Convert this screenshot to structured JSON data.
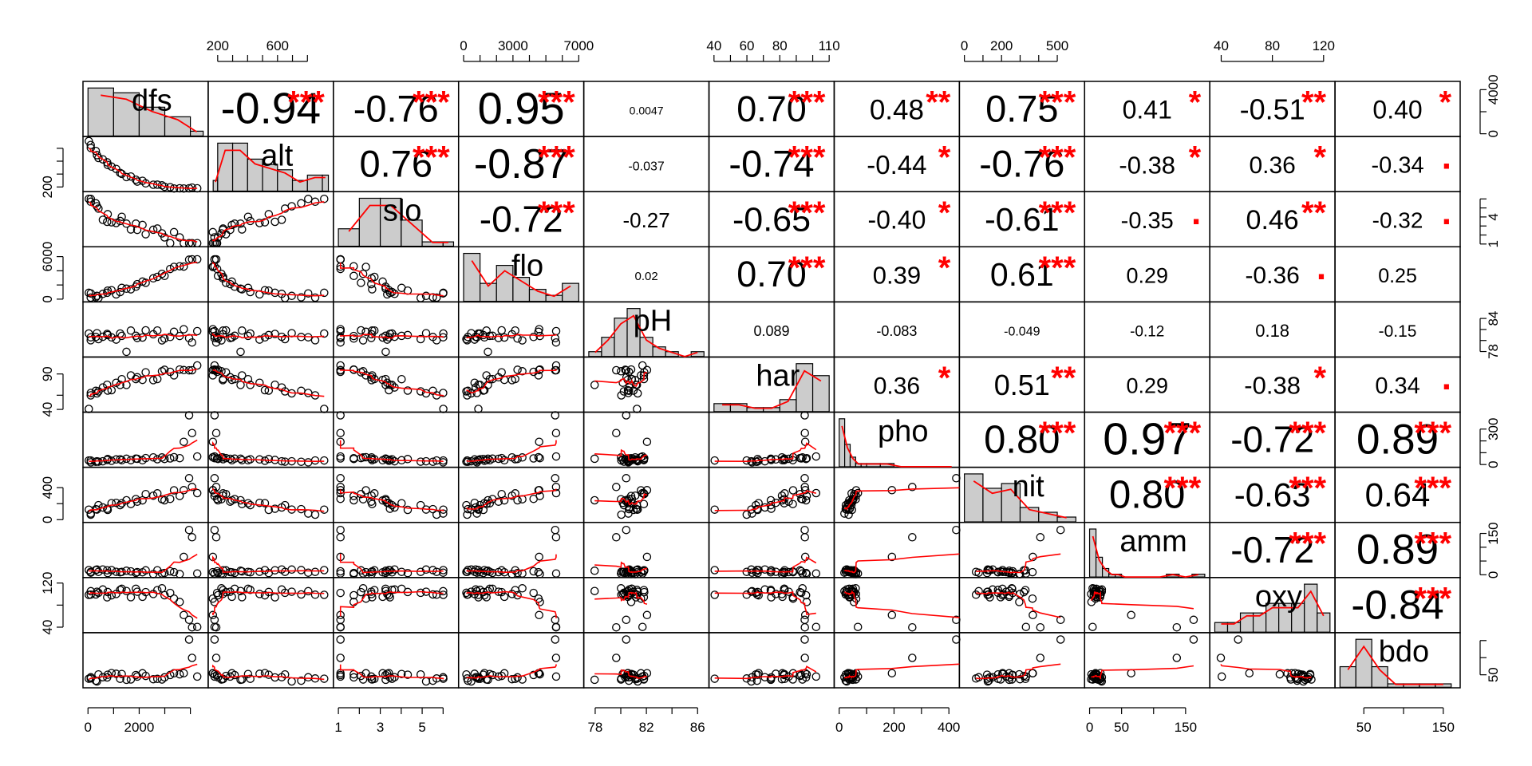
{
  "chart_data": {
    "type": "scatter-matrix",
    "variables": [
      "dfs",
      "alt",
      "slo",
      "flo",
      "pH",
      "har",
      "pho",
      "nit",
      "amm",
      "oxy",
      "bdo"
    ],
    "ranges": {
      "dfs": [
        0,
        4500
      ],
      "alt": [
        170,
        940
      ],
      "slo": [
        1,
        6.5
      ],
      "flo": [
        0,
        7000
      ],
      "pH": [
        77.5,
        86.5
      ],
      "har": [
        40,
        110
      ],
      "pho": [
        0,
        420
      ],
      "nit": [
        0,
        620
      ],
      "amm": [
        0,
        180
      ],
      "oxy": [
        35,
        125
      ],
      "bdo": [
        20,
        165
      ]
    },
    "top_axis": [
      {
        "var": "alt",
        "labels": [
          "200",
          "600"
        ],
        "values": [
          200,
          600
        ],
        "minor": [
          300,
          400,
          500,
          700,
          800
        ]
      },
      {
        "var": "flo",
        "labels": [
          "0",
          "3000",
          "7000"
        ],
        "values": [
          0,
          3000,
          7000
        ],
        "minor": [
          1000,
          2000,
          4000,
          5000,
          6000
        ]
      },
      {
        "var": "har",
        "labels": [
          "40",
          "60",
          "80",
          "110"
        ],
        "values": [
          40,
          60,
          80,
          110
        ],
        "minor": [
          50,
          70,
          90,
          100
        ]
      },
      {
        "var": "nit",
        "labels": [
          "0",
          "200",
          "500"
        ],
        "values": [
          0,
          200,
          500
        ],
        "minor": [
          100,
          300,
          400
        ]
      },
      {
        "var": "oxy",
        "labels": [
          "40",
          "80",
          "120"
        ],
        "values": [
          40,
          80,
          120
        ],
        "minor": []
      }
    ],
    "bottom_axis": [
      {
        "var": "dfs",
        "labels": [
          "0",
          "2000"
        ],
        "values": [
          0,
          2000
        ],
        "minor": [
          1000,
          3000,
          4000
        ]
      },
      {
        "var": "slo",
        "labels": [
          "1",
          "3",
          "5"
        ],
        "values": [
          1,
          3,
          5
        ],
        "minor": [
          2,
          4,
          6
        ]
      },
      {
        "var": "pH",
        "labels": [
          "78",
          "82",
          "86"
        ],
        "values": [
          78,
          82,
          86
        ],
        "minor": [
          80,
          84
        ]
      },
      {
        "var": "pho",
        "labels": [
          "0",
          "200",
          "400"
        ],
        "values": [
          0,
          200,
          400
        ],
        "minor": [
          100,
          300
        ]
      },
      {
        "var": "amm",
        "labels": [
          "0",
          "50",
          "150"
        ],
        "values": [
          0,
          50,
          150
        ],
        "minor": [
          100
        ]
      },
      {
        "var": "bdo",
        "labels": [
          "50",
          "150"
        ],
        "values": [
          50,
          150
        ],
        "minor": [
          100
        ]
      }
    ],
    "left_axis": [
      {
        "var": "alt",
        "labels": [
          "200"
        ],
        "values": [
          200
        ],
        "minor": [
          400,
          600,
          800
        ]
      },
      {
        "var": "flo",
        "labels": [
          "0",
          "6000"
        ],
        "values": [
          0,
          6000
        ],
        "minor": [
          2000,
          4000
        ]
      },
      {
        "var": "har",
        "labels": [
          "40",
          "90"
        ],
        "values": [
          40,
          90
        ],
        "minor": [
          60
        ]
      },
      {
        "var": "nit",
        "labels": [
          "0",
          "400"
        ],
        "values": [
          0,
          400
        ],
        "minor": [
          200
        ]
      },
      {
        "var": "oxy",
        "labels": [
          "40",
          "120"
        ],
        "values": [
          40,
          120
        ],
        "minor": [
          80
        ]
      }
    ],
    "right_axis": [
      {
        "var": "dfs",
        "labels": [
          "0",
          "4000"
        ],
        "values": [
          0,
          4000
        ],
        "minor": [
          2000
        ]
      },
      {
        "var": "slo",
        "labels": [
          "1",
          "4"
        ],
        "values": [
          1,
          4
        ],
        "minor": [
          2,
          3,
          5,
          6
        ]
      },
      {
        "var": "pH",
        "labels": [
          "78",
          "84"
        ],
        "values": [
          78,
          84
        ],
        "minor": [
          80,
          82
        ]
      },
      {
        "var": "pho",
        "labels": [
          "0",
          "300"
        ],
        "values": [
          0,
          300
        ],
        "minor": [
          100,
          200
        ]
      },
      {
        "var": "amm",
        "labels": [
          "0",
          "150"
        ],
        "values": [
          0,
          150
        ],
        "minor": [
          50,
          100
        ]
      },
      {
        "var": "bdo",
        "labels": [
          "50"
        ],
        "values": [
          50
        ],
        "minor": [
          100,
          150
        ]
      }
    ],
    "correlations": [
      {
        "row": "dfs",
        "col": "alt",
        "r": "-0.94",
        "stars": "***"
      },
      {
        "row": "dfs",
        "col": "slo",
        "r": "-0.76",
        "stars": "***"
      },
      {
        "row": "dfs",
        "col": "flo",
        "r": "0.95",
        "stars": "***"
      },
      {
        "row": "dfs",
        "col": "pH",
        "r": "0.0047",
        "stars": ""
      },
      {
        "row": "dfs",
        "col": "har",
        "r": "0.70",
        "stars": "***"
      },
      {
        "row": "dfs",
        "col": "pho",
        "r": "0.48",
        "stars": "**"
      },
      {
        "row": "dfs",
        "col": "nit",
        "r": "0.75",
        "stars": "***"
      },
      {
        "row": "dfs",
        "col": "amm",
        "r": "0.41",
        "stars": "*"
      },
      {
        "row": "dfs",
        "col": "oxy",
        "r": "-0.51",
        "stars": "**"
      },
      {
        "row": "dfs",
        "col": "bdo",
        "r": "0.40",
        "stars": "*"
      },
      {
        "row": "alt",
        "col": "slo",
        "r": "0.76",
        "stars": "***"
      },
      {
        "row": "alt",
        "col": "flo",
        "r": "-0.87",
        "stars": "***"
      },
      {
        "row": "alt",
        "col": "pH",
        "r": "-0.037",
        "stars": ""
      },
      {
        "row": "alt",
        "col": "har",
        "r": "-0.74",
        "stars": "***"
      },
      {
        "row": "alt",
        "col": "pho",
        "r": "-0.44",
        "stars": "*"
      },
      {
        "row": "alt",
        "col": "nit",
        "r": "-0.76",
        "stars": "***"
      },
      {
        "row": "alt",
        "col": "amm",
        "r": "-0.38",
        "stars": "*"
      },
      {
        "row": "alt",
        "col": "oxy",
        "r": "0.36",
        "stars": "*"
      },
      {
        "row": "alt",
        "col": "bdo",
        "r": "-0.34",
        "stars": "."
      },
      {
        "row": "slo",
        "col": "flo",
        "r": "-0.72",
        "stars": "***"
      },
      {
        "row": "slo",
        "col": "pH",
        "r": "-0.27",
        "stars": ""
      },
      {
        "row": "slo",
        "col": "har",
        "r": "-0.65",
        "stars": "***"
      },
      {
        "row": "slo",
        "col": "pho",
        "r": "-0.40",
        "stars": "*"
      },
      {
        "row": "slo",
        "col": "nit",
        "r": "-0.61",
        "stars": "***"
      },
      {
        "row": "slo",
        "col": "amm",
        "r": "-0.35",
        "stars": "."
      },
      {
        "row": "slo",
        "col": "oxy",
        "r": "0.46",
        "stars": "**"
      },
      {
        "row": "slo",
        "col": "bdo",
        "r": "-0.32",
        "stars": "."
      },
      {
        "row": "flo",
        "col": "pH",
        "r": "0.02",
        "stars": ""
      },
      {
        "row": "flo",
        "col": "har",
        "r": "0.70",
        "stars": "***"
      },
      {
        "row": "flo",
        "col": "pho",
        "r": "0.39",
        "stars": "*"
      },
      {
        "row": "flo",
        "col": "nit",
        "r": "0.61",
        "stars": "***"
      },
      {
        "row": "flo",
        "col": "amm",
        "r": "0.29",
        "stars": ""
      },
      {
        "row": "flo",
        "col": "oxy",
        "r": "-0.36",
        "stars": "."
      },
      {
        "row": "flo",
        "col": "bdo",
        "r": "0.25",
        "stars": ""
      },
      {
        "row": "pH",
        "col": "har",
        "r": "0.089",
        "stars": ""
      },
      {
        "row": "pH",
        "col": "pho",
        "r": "-0.083",
        "stars": ""
      },
      {
        "row": "pH",
        "col": "nit",
        "r": "-0.049",
        "stars": ""
      },
      {
        "row": "pH",
        "col": "amm",
        "r": "-0.12",
        "stars": ""
      },
      {
        "row": "pH",
        "col": "oxy",
        "r": "0.18",
        "stars": ""
      },
      {
        "row": "pH",
        "col": "bdo",
        "r": "-0.15",
        "stars": ""
      },
      {
        "row": "har",
        "col": "pho",
        "r": "0.36",
        "stars": "*"
      },
      {
        "row": "har",
        "col": "nit",
        "r": "0.51",
        "stars": "**"
      },
      {
        "row": "har",
        "col": "amm",
        "r": "0.29",
        "stars": ""
      },
      {
        "row": "har",
        "col": "oxy",
        "r": "-0.38",
        "stars": "*"
      },
      {
        "row": "har",
        "col": "bdo",
        "r": "0.34",
        "stars": "."
      },
      {
        "row": "pho",
        "col": "nit",
        "r": "0.80",
        "stars": "***"
      },
      {
        "row": "pho",
        "col": "amm",
        "r": "0.97",
        "stars": "***"
      },
      {
        "row": "pho",
        "col": "oxy",
        "r": "-0.72",
        "stars": "***"
      },
      {
        "row": "pho",
        "col": "bdo",
        "r": "0.89",
        "stars": "***"
      },
      {
        "row": "nit",
        "col": "amm",
        "r": "0.80",
        "stars": "***"
      },
      {
        "row": "nit",
        "col": "oxy",
        "r": "-0.63",
        "stars": "***"
      },
      {
        "row": "nit",
        "col": "bdo",
        "r": "0.64",
        "stars": "***"
      },
      {
        "row": "amm",
        "col": "oxy",
        "r": "-0.72",
        "stars": "***"
      },
      {
        "row": "amm",
        "col": "bdo",
        "r": "0.89",
        "stars": "***"
      },
      {
        "row": "oxy",
        "col": "bdo",
        "r": "-0.84",
        "stars": "***"
      }
    ],
    "histograms": {
      "dfs": {
        "breaks": [
          0,
          1000,
          2000,
          3000,
          4000,
          4500
        ],
        "counts": [
          10,
          9,
          6,
          4,
          1
        ]
      },
      "alt": {
        "breaks": [
          100,
          200,
          300,
          400,
          500,
          600,
          700,
          800,
          900,
          1000
        ],
        "counts": [
          2,
          9,
          9,
          6,
          5,
          4,
          2,
          3,
          3
        ]
      },
      "slo": {
        "breaks": [
          1,
          2,
          3,
          4,
          5,
          6,
          7
        ],
        "counts": [
          4,
          11,
          11,
          6,
          1,
          1
        ]
      },
      "flo": {
        "breaks": [
          0,
          1000,
          2000,
          3000,
          4000,
          5000,
          6000,
          7000
        ],
        "counts": [
          8,
          3,
          6,
          4,
          2,
          1,
          3
        ]
      },
      "pH": {
        "breaks": [
          77.5,
          78.5,
          79.5,
          80.5,
          81.5,
          82.5,
          83.5,
          84.5,
          85.5,
          86.5
        ],
        "counts": [
          1,
          4,
          8,
          10,
          4,
          2,
          1,
          0,
          1
        ]
      },
      "har": {
        "breaks": [
          40,
          50,
          60,
          70,
          80,
          90,
          100,
          110
        ],
        "counts": [
          2,
          2,
          1,
          1,
          3,
          12,
          9
        ]
      },
      "pho": {
        "breaks": [
          0,
          20,
          40,
          60,
          80,
          100,
          150,
          200,
          250,
          300,
          350,
          400,
          450
        ],
        "counts": [
          15,
          7,
          3,
          1,
          1,
          1,
          1,
          0,
          0,
          0,
          0,
          0
        ]
      },
      "nit": {
        "breaks": [
          0,
          100,
          200,
          300,
          400,
          500,
          600
        ],
        "counts": [
          10,
          7,
          8,
          3,
          2,
          1
        ]
      },
      "amm": {
        "breaks": [
          0,
          10,
          20,
          30,
          40,
          50,
          60,
          80,
          100,
          120,
          140,
          160,
          180
        ],
        "counts": [
          17,
          7,
          3,
          1,
          1,
          0,
          0,
          0,
          0,
          1,
          0,
          1
        ]
      },
      "oxy": {
        "breaks": [
          35,
          45,
          55,
          65,
          75,
          85,
          95,
          105,
          115,
          125
        ],
        "counts": [
          1,
          1,
          2,
          2,
          3,
          3,
          3,
          5,
          2
        ]
      },
      "bdo": {
        "breaks": [
          20,
          40,
          60,
          80,
          100,
          120,
          140,
          160
        ],
        "counts": [
          6,
          14,
          6,
          1,
          1,
          1,
          1
        ]
      }
    }
  }
}
